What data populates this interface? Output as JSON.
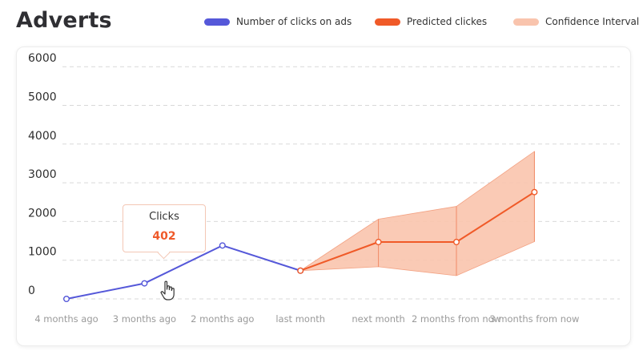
{
  "header": {
    "title": "Adverts"
  },
  "legend": [
    {
      "label": "Number of clicks on ads",
      "color": "#5558d9"
    },
    {
      "label": "Predicted clickes",
      "color": "#f05a28"
    },
    {
      "label": "Confidence Interval",
      "color": "#f9c4ad"
    }
  ],
  "tooltip": {
    "title": "Clicks",
    "value": "402"
  },
  "chart_data": {
    "type": "line",
    "categories": [
      "4 months ago",
      "3 months ago",
      "2 months ago",
      "last month",
      "next month",
      "2 months from now",
      "3 months from now"
    ],
    "y_ticks": [
      0,
      1000,
      2000,
      3000,
      4000,
      5000,
      6000
    ],
    "ylim": [
      0,
      6000
    ],
    "grid": true,
    "legend_position": "top-right",
    "series": [
      {
        "name": "Number of clicks on ads",
        "color": "#5558d9",
        "points": [
          {
            "x": "4 months ago",
            "y": 0
          },
          {
            "x": "3 months ago",
            "y": 402
          },
          {
            "x": "2 months ago",
            "y": 1380
          },
          {
            "x": "last month",
            "y": 730
          }
        ]
      },
      {
        "name": "Predicted clickes",
        "color": "#f05a28",
        "points": [
          {
            "x": "last month",
            "y": 730
          },
          {
            "x": "next month",
            "y": 1470
          },
          {
            "x": "2 months from now",
            "y": 1470
          },
          {
            "x": "3 months from now",
            "y": 2760
          }
        ]
      }
    ],
    "confidence_interval": {
      "name": "Confidence Interval",
      "color": "#f9c4ad",
      "points": [
        {
          "x": "last month",
          "lower": 730,
          "upper": 730
        },
        {
          "x": "next month",
          "lower": 830,
          "upper": 2060
        },
        {
          "x": "2 months from now",
          "lower": 600,
          "upper": 2390
        },
        {
          "x": "3 months from now",
          "lower": 1480,
          "upper": 3810
        }
      ]
    }
  }
}
